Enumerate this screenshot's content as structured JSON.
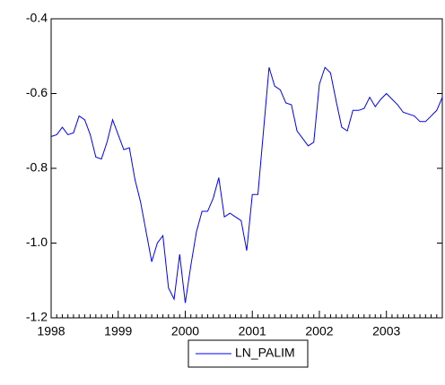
{
  "chart_data": {
    "type": "line",
    "categories": [
      "1998",
      null,
      null,
      null,
      null,
      null,
      null,
      null,
      null,
      null,
      null,
      null,
      "1999",
      null,
      null,
      null,
      null,
      null,
      null,
      null,
      null,
      null,
      null,
      null,
      "2000",
      null,
      null,
      null,
      null,
      null,
      null,
      null,
      null,
      null,
      null,
      null,
      "2001",
      null,
      null,
      null,
      null,
      null,
      null,
      null,
      null,
      null,
      null,
      null,
      "2002",
      null,
      null,
      null,
      null,
      null,
      null,
      null,
      null,
      null,
      null,
      null,
      "2003",
      null,
      null,
      null,
      null,
      null,
      null,
      null,
      null,
      null,
      null
    ],
    "series": [
      {
        "name": "LN_PALIM",
        "color": "#0000ff",
        "values": [
          -0.715,
          -0.71,
          -0.69,
          -0.71,
          -0.705,
          -0.66,
          -0.67,
          -0.71,
          -0.77,
          -0.775,
          -0.73,
          -0.67,
          -0.71,
          -0.75,
          -0.745,
          -0.83,
          -0.89,
          -0.97,
          -1.05,
          -1.0,
          -0.98,
          -1.12,
          -1.15,
          -1.03,
          -1.16,
          -1.06,
          -0.97,
          -0.915,
          -0.915,
          -0.88,
          -0.825,
          -0.93,
          -0.92,
          -0.93,
          -0.94,
          -1.02,
          -0.87,
          -0.87,
          -0.7,
          -0.53,
          -0.58,
          -0.59,
          -0.625,
          -0.63,
          -0.7,
          -0.72,
          -0.74,
          -0.73,
          -0.575,
          -0.53,
          -0.545,
          -0.62,
          -0.69,
          -0.7,
          -0.645,
          -0.645,
          -0.64,
          -0.61,
          -0.635,
          -0.615,
          -0.6,
          -0.615,
          -0.63,
          -0.65,
          -0.655,
          -0.66,
          -0.675,
          -0.675,
          -0.66,
          -0.645,
          -0.61
        ]
      }
    ],
    "ylim": [
      -1.2,
      -0.4
    ],
    "yticks": [
      -1.2,
      {
        "value": -1.0,
        "label": "-1.0"
      },
      -0.8,
      -0.6,
      -0.4
    ],
    "legend": "bottom"
  }
}
